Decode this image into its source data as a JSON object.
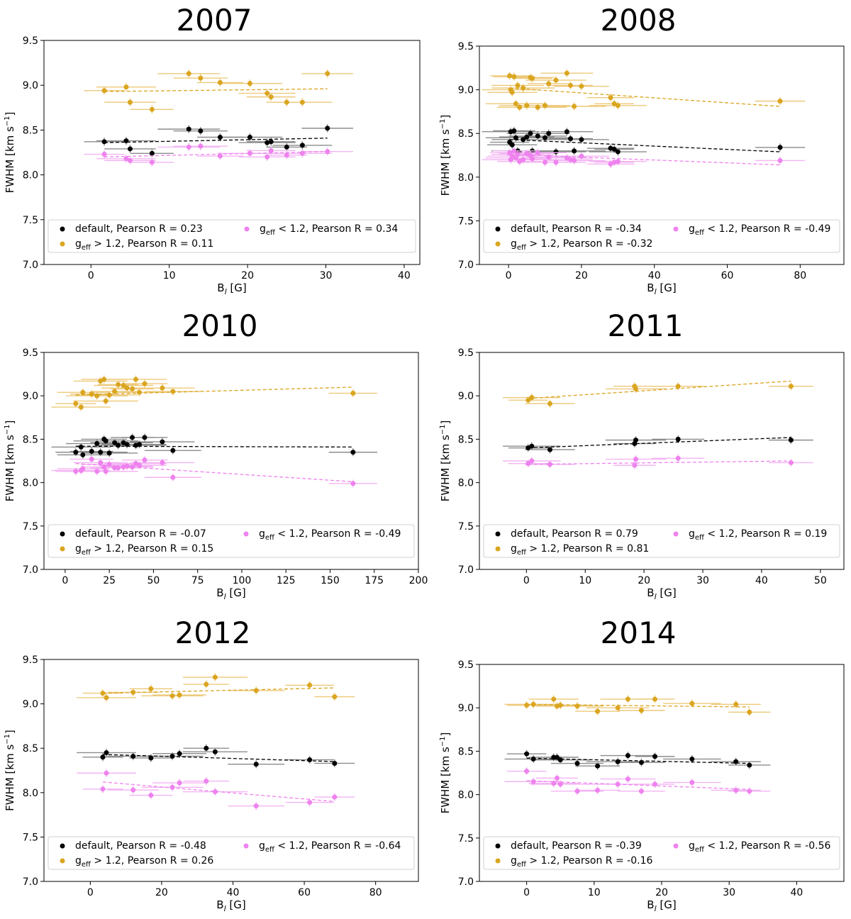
{
  "colors": {
    "default": "#000000",
    "high": "#DAA520",
    "low": "#EE82EE",
    "errHigh": "#EDC97A",
    "errLow": "#F3B4F3",
    "errDefault": "#8c8c8c"
  },
  "chart_data": [
    {
      "type": "scatter",
      "title": "2007",
      "xlabel": "B_l [G]",
      "ylabel": "FWHM [km s^-1]",
      "xlim": [
        -6,
        42
      ],
      "ylim": [
        7.0,
        9.5
      ],
      "xticks": [
        0,
        10,
        20,
        30,
        40
      ],
      "yticks": [
        7.0,
        7.5,
        8.0,
        8.5,
        9.0,
        9.5
      ],
      "legend": {
        "placement": "lower-left",
        "default": "default, Pearson R = 0.23",
        "high": "g_eff > 1.2, Pearson R = 0.11",
        "low": "g_eff < 1.2, Pearson R = 0.34"
      },
      "series": [
        {
          "name": "default",
          "x": [
            1.7,
            4.5,
            5,
            7.8,
            12.5,
            14,
            16.5,
            20.3,
            22.5,
            23,
            25,
            27,
            30.2
          ],
          "y": [
            8.37,
            8.38,
            8.29,
            8.24,
            8.51,
            8.49,
            8.42,
            8.42,
            8.36,
            8.37,
            8.31,
            8.33,
            8.52
          ],
          "fit": [
            [
              1.7,
              8.36
            ],
            [
              30.2,
              8.41
            ]
          ]
        },
        {
          "name": "g_eff > 1.2",
          "x": [
            1.7,
            4.5,
            5,
            7.8,
            12.5,
            14,
            16.5,
            20.3,
            22.5,
            23,
            25,
            27,
            30.2
          ],
          "y": [
            8.94,
            8.98,
            8.81,
            8.73,
            9.13,
            9.08,
            9.03,
            9.02,
            8.91,
            8.87,
            8.81,
            8.81,
            9.13
          ],
          "fit": [
            [
              1.7,
              8.93
            ],
            [
              30.2,
              8.96
            ]
          ]
        },
        {
          "name": "g_eff < 1.2",
          "x": [
            1.7,
            4.5,
            5,
            7.8,
            12.5,
            14,
            16.5,
            20.3,
            22.5,
            23,
            25,
            27,
            30.2
          ],
          "y": [
            8.23,
            8.18,
            8.16,
            8.14,
            8.31,
            8.32,
            8.21,
            8.24,
            8.2,
            8.27,
            8.22,
            8.24,
            8.26
          ],
          "fit": [
            [
              1.7,
              8.2
            ],
            [
              30.2,
              8.26
            ]
          ]
        }
      ]
    },
    {
      "type": "scatter",
      "title": "2008",
      "xlabel": "B_l [G]",
      "ylabel": "FWHM [km s^-1]",
      "xlim": [
        -8,
        92
      ],
      "ylim": [
        7.0,
        9.5
      ],
      "xticks": [
        0,
        20,
        40,
        60,
        80
      ],
      "yticks": [
        7.0,
        7.5,
        8.0,
        8.5,
        9.0,
        9.5
      ],
      "legend": {
        "placement": "lower-left",
        "default": "default, Pearson R = -0.34",
        "high": "g_eff > 1.2, Pearson R = -0.32",
        "low": "g_eff < 1.2, Pearson R = -0.49"
      },
      "series": [
        {
          "name": "default",
          "x": [
            0.3,
            0.6,
            1,
            1.5,
            2,
            2.5,
            3,
            4,
            5,
            6,
            6.5,
            8,
            10,
            11,
            13,
            16,
            17,
            18,
            20,
            28,
            29,
            30,
            74.5
          ],
          "y": [
            8.4,
            8.52,
            8.37,
            8.53,
            8.45,
            8.3,
            8.28,
            8.43,
            8.46,
            8.5,
            8.3,
            8.47,
            8.45,
            8.5,
            8.29,
            8.52,
            8.44,
            8.3,
            8.43,
            8.33,
            8.32,
            8.29,
            8.34
          ],
          "fit": [
            [
              0.3,
              8.43
            ],
            [
              74.5,
              8.29
            ]
          ]
        },
        {
          "name": "g_eff > 1.2",
          "x": [
            0.3,
            0.6,
            1,
            1.5,
            2,
            2.5,
            3,
            4,
            5,
            6,
            6.5,
            8,
            10,
            11,
            13,
            16,
            17,
            18,
            20,
            28,
            29,
            30,
            74.5
          ],
          "y": [
            9.16,
            9.0,
            8.97,
            9.15,
            8.84,
            9.05,
            8.8,
            9.02,
            8.82,
            9.14,
            9.13,
            8.8,
            8.82,
            9.07,
            9.11,
            9.19,
            9.05,
            8.81,
            9.04,
            8.91,
            8.84,
            8.82,
            8.87
          ],
          "fit": [
            [
              0.3,
              9.02
            ],
            [
              74.5,
              8.81
            ]
          ]
        },
        {
          "name": "g_eff < 1.2",
          "x": [
            0.3,
            0.6,
            1,
            1.5,
            2,
            2.5,
            3,
            4,
            5,
            6,
            6.5,
            8,
            10,
            11,
            13,
            16,
            17,
            18,
            20,
            28,
            29,
            30,
            74.5
          ],
          "y": [
            8.28,
            8.2,
            8.24,
            8.3,
            8.22,
            8.26,
            8.18,
            8.2,
            8.27,
            8.25,
            8.21,
            8.28,
            8.17,
            8.23,
            8.17,
            8.22,
            8.2,
            8.19,
            8.24,
            8.15,
            8.17,
            8.18,
            8.19
          ],
          "fit": [
            [
              0.3,
              8.26
            ],
            [
              74.5,
              8.14
            ]
          ]
        }
      ]
    },
    {
      "type": "scatter",
      "title": "2010",
      "xlabel": "B_l [G]",
      "ylabel": "FWHM [km s^-1]",
      "xlim": [
        -12,
        200
      ],
      "ylim": [
        7.0,
        9.5
      ],
      "xticks": [
        0,
        25,
        50,
        75,
        100,
        125,
        150,
        175,
        200
      ],
      "yticks": [
        7.0,
        7.5,
        8.0,
        8.5,
        9.0,
        9.5
      ],
      "legend": {
        "placement": "lower-left",
        "default": "default, Pearson R = -0.07",
        "high": "g_eff > 1.2, Pearson R = 0.15",
        "low": "g_eff < 1.2, Pearson R = -0.49"
      },
      "series": [
        {
          "name": "default",
          "x": [
            6,
            9,
            10,
            15,
            18,
            20,
            22,
            23,
            25,
            28,
            30,
            33,
            35,
            38,
            40,
            42,
            45,
            55,
            61,
            163
          ],
          "y": [
            8.35,
            8.41,
            8.32,
            8.36,
            8.45,
            8.35,
            8.5,
            8.48,
            8.34,
            8.46,
            8.43,
            8.46,
            8.44,
            8.52,
            8.43,
            8.44,
            8.52,
            8.47,
            8.37,
            8.35
          ],
          "fit": [
            [
              6,
              8.42
            ],
            [
              163,
              8.41
            ]
          ]
        },
        {
          "name": "g_eff > 1.2",
          "x": [
            6,
            9,
            10,
            15,
            18,
            20,
            22,
            23,
            25,
            28,
            30,
            33,
            35,
            38,
            40,
            42,
            45,
            55,
            61,
            163
          ],
          "y": [
            8.91,
            8.87,
            9.04,
            9.02,
            9.0,
            9.17,
            9.19,
            8.94,
            9.01,
            9.05,
            9.13,
            9.12,
            9.09,
            9.08,
            9.19,
            9.04,
            9.14,
            9.09,
            9.05,
            9.03
          ],
          "fit": [
            [
              6,
              9.01
            ],
            [
              163,
              9.1
            ]
          ]
        },
        {
          "name": "g_eff < 1.2",
          "x": [
            6,
            9,
            10,
            15,
            18,
            20,
            22,
            23,
            25,
            28,
            30,
            33,
            35,
            38,
            40,
            42,
            45,
            55,
            61,
            163
          ],
          "y": [
            8.13,
            8.14,
            8.16,
            8.27,
            8.13,
            8.23,
            8.18,
            8.13,
            8.21,
            8.17,
            8.17,
            8.18,
            8.19,
            8.18,
            8.22,
            8.2,
            8.26,
            8.23,
            8.06,
            7.99
          ],
          "fit": [
            [
              6,
              8.22
            ],
            [
              163,
              8.01
            ]
          ]
        }
      ]
    },
    {
      "type": "scatter",
      "title": "2011",
      "xlabel": "B_l [G]",
      "ylabel": "FWHM [km s^-1]",
      "xlim": [
        -8,
        54
      ],
      "ylim": [
        7.0,
        9.5
      ],
      "xticks": [
        0,
        10,
        20,
        30,
        40,
        50
      ],
      "yticks": [
        7.0,
        7.5,
        8.0,
        8.5,
        9.0,
        9.5
      ],
      "legend": {
        "placement": "lower-left",
        "default": "default, Pearson R = 0.79",
        "high": "g_eff > 1.2, Pearson R = 0.81",
        "low": "g_eff < 1.2, Pearson R = 0.19"
      },
      "series": [
        {
          "name": "default",
          "x": [
            0.3,
            0.9,
            4,
            18.4,
            18.6,
            25.8,
            45
          ],
          "y": [
            8.4,
            8.42,
            8.38,
            8.45,
            8.49,
            8.5,
            8.49
          ],
          "fit": [
            [
              0.3,
              8.4
            ],
            [
              45,
              8.52
            ]
          ]
        },
        {
          "name": "g_eff > 1.2",
          "x": [
            0.3,
            0.9,
            4,
            18.4,
            18.6,
            25.8,
            45
          ],
          "y": [
            8.95,
            8.98,
            8.91,
            9.11,
            9.08,
            9.11,
            9.11
          ],
          "fit": [
            [
              0.3,
              8.97
            ],
            [
              45,
              9.17
            ]
          ]
        },
        {
          "name": "g_eff < 1.2",
          "x": [
            0.3,
            0.9,
            4,
            18.4,
            18.6,
            25.8,
            45
          ],
          "y": [
            8.22,
            8.25,
            8.21,
            8.2,
            8.27,
            8.28,
            8.23
          ],
          "fit": [
            [
              0.3,
              8.21
            ],
            [
              45,
              8.25
            ]
          ]
        }
      ]
    },
    {
      "type": "scatter",
      "title": "2012",
      "xlabel": "B_l [G]",
      "ylabel": "FWHM [km s^-1]",
      "xlim": [
        -13,
        92
      ],
      "ylim": [
        7.0,
        9.5
      ],
      "xticks": [
        0,
        20,
        40,
        60,
        80
      ],
      "yticks": [
        7.0,
        7.5,
        8.0,
        8.5,
        9.0,
        9.5
      ],
      "legend": {
        "placement": "lower-left",
        "default": "default, Pearson R = -0.48",
        "high": "g_eff > 1.2, Pearson R = 0.26",
        "low": "g_eff < 1.2, Pearson R = -0.64"
      },
      "series": [
        {
          "name": "default",
          "x": [
            3.5,
            4.5,
            12,
            17,
            23,
            25,
            32.5,
            35,
            46.5,
            61.5,
            68.5
          ],
          "y": [
            8.4,
            8.45,
            8.41,
            8.39,
            8.41,
            8.44,
            8.5,
            8.46,
            8.32,
            8.37,
            8.33
          ],
          "fit": [
            [
              3.5,
              8.43
            ],
            [
              68.5,
              8.35
            ]
          ]
        },
        {
          "name": "g_eff > 1.2",
          "x": [
            3.5,
            4.5,
            12,
            17,
            23,
            25,
            32.5,
            35,
            46.5,
            61.5,
            68.5
          ],
          "y": [
            9.12,
            9.07,
            9.13,
            9.17,
            9.09,
            9.1,
            9.22,
            9.3,
            9.15,
            9.21,
            9.08
          ],
          "fit": [
            [
              3.5,
              9.12
            ],
            [
              68.5,
              9.18
            ]
          ]
        },
        {
          "name": "g_eff < 1.2",
          "x": [
            3.5,
            4.5,
            12,
            17,
            23,
            25,
            32.5,
            35,
            46.5,
            61.5,
            68.5
          ],
          "y": [
            8.04,
            8.22,
            8.03,
            7.97,
            8.06,
            8.11,
            8.13,
            8.01,
            7.85,
            7.89,
            7.95
          ],
          "fit": [
            [
              3.5,
              8.12
            ],
            [
              68.5,
              7.9
            ]
          ]
        }
      ]
    },
    {
      "type": "scatter",
      "title": "2014",
      "xlabel": "B_l [G]",
      "ylabel": "FWHM [km s^-1]",
      "xlim": [
        -7,
        47
      ],
      "ylim": [
        7.0,
        9.5
      ],
      "xticks": [
        0,
        10,
        20,
        30,
        40
      ],
      "yticks": [
        7.0,
        7.5,
        8.0,
        8.5,
        9.0,
        9.5
      ],
      "legend": {
        "placement": "lower-left",
        "default": "default, Pearson R = -0.39",
        "high": "g_eff > 1.2, Pearson R = -0.16",
        "low": "g_eff < 1.2, Pearson R = -0.56"
      },
      "series": [
        {
          "name": "default",
          "x": [
            0,
            1,
            4,
            4.5,
            5,
            7.5,
            10.5,
            13.5,
            15,
            17,
            19,
            24.5,
            31,
            33
          ],
          "y": [
            8.47,
            8.41,
            8.43,
            8.43,
            8.4,
            8.36,
            8.33,
            8.38,
            8.45,
            8.37,
            8.44,
            8.41,
            8.38,
            8.34
          ],
          "fit": [
            [
              0,
              8.42
            ],
            [
              33,
              8.36
            ]
          ]
        },
        {
          "name": "g_eff > 1.2",
          "x": [
            0,
            1,
            4,
            4.5,
            5,
            7.5,
            10.5,
            13.5,
            15,
            17,
            19,
            24.5,
            31,
            33
          ],
          "y": [
            9.03,
            9.04,
            9.1,
            9.02,
            9.03,
            9.02,
            8.96,
            9.0,
            9.1,
            8.97,
            9.1,
            9.05,
            9.04,
            8.95
          ],
          "fit": [
            [
              0,
              9.04
            ],
            [
              33,
              9.01
            ]
          ]
        },
        {
          "name": "g_eff < 1.2",
          "x": [
            0,
            1,
            4,
            4.5,
            5,
            7.5,
            10.5,
            13.5,
            15,
            17,
            19,
            24.5,
            31,
            33
          ],
          "y": [
            8.27,
            8.15,
            8.13,
            8.19,
            8.12,
            8.04,
            8.05,
            8.12,
            8.18,
            8.04,
            8.12,
            8.14,
            8.05,
            8.04
          ],
          "fit": [
            [
              0,
              8.16
            ],
            [
              33,
              8.06
            ]
          ]
        }
      ]
    }
  ]
}
